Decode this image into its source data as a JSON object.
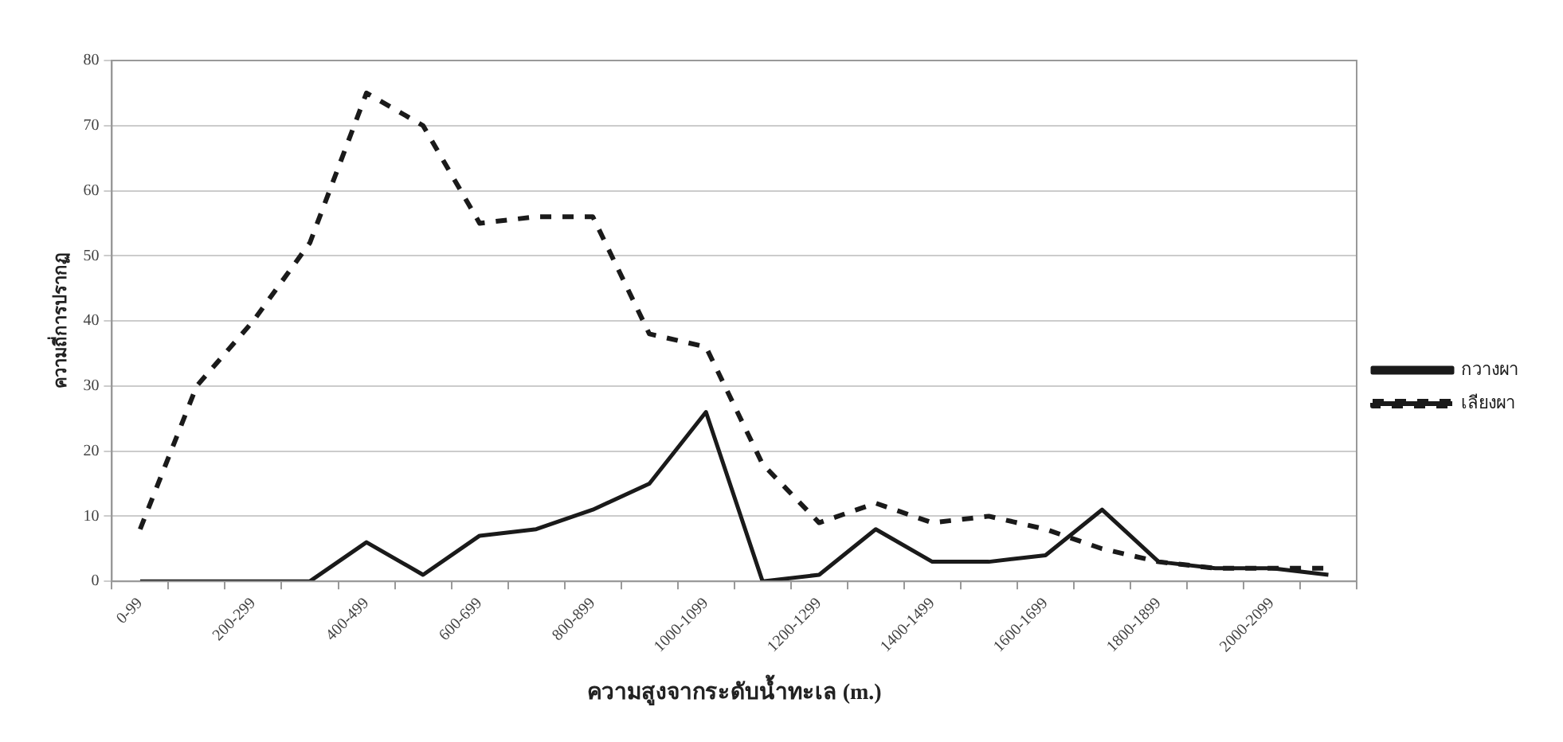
{
  "chart_data": {
    "type": "line",
    "xlabel": "ความสูงจากระดับน้ำทะเล (m.)",
    "ylabel": "ความถี่การปรากฏ",
    "categories": [
      "0-99",
      null,
      "200-299",
      null,
      "400-499",
      null,
      "600-699",
      null,
      "800-899",
      null,
      "1000-1099",
      null,
      "1200-1299",
      null,
      "1400-1499",
      null,
      "1600-1699",
      null,
      "1800-1899",
      null,
      "2000-2099",
      null
    ],
    "series": [
      {
        "name": "กวางผา",
        "color": "#1a1a1a",
        "line_style": "solid",
        "values": [
          0,
          0,
          0,
          0,
          6,
          1,
          7,
          8,
          11,
          15,
          26,
          0,
          1,
          8,
          3,
          3,
          4,
          11,
          3,
          2,
          2,
          1
        ]
      },
      {
        "name": "เลียงผา",
        "color": "#1a1a1a",
        "line_style": "dashed",
        "values": [
          8,
          30,
          40,
          52,
          75,
          70,
          55,
          56,
          56,
          38,
          36,
          18,
          9,
          12,
          9,
          10,
          8,
          5,
          3,
          2,
          2,
          2
        ]
      }
    ],
    "ylim": [
      0,
      80
    ],
    "yticks": [
      0,
      10,
      20,
      30,
      40,
      50,
      60,
      70,
      80
    ],
    "grid": "y",
    "legend": "right",
    "marker": "none"
  }
}
